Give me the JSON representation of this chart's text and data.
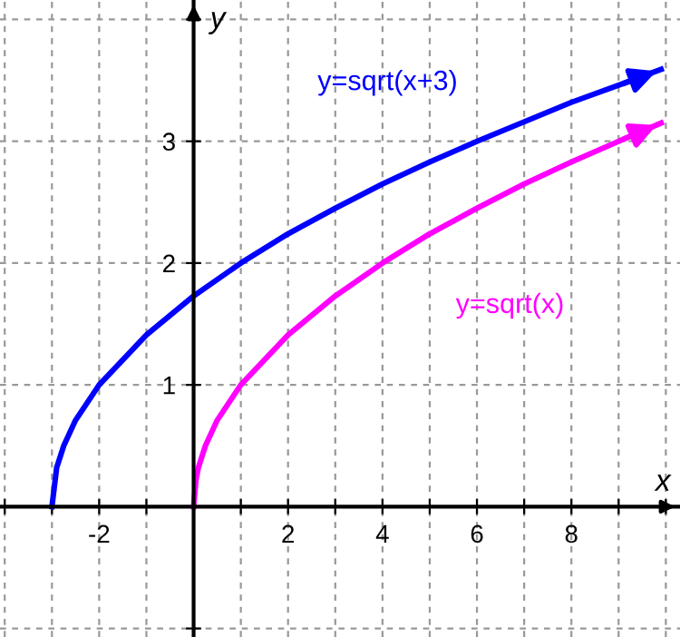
{
  "chart_data": {
    "type": "line",
    "xlabel": "x",
    "ylabel": "y",
    "series": [
      {
        "name": "y=sqrt(x+3)",
        "color": "#0000ff",
        "x": [
          -3,
          -2.9,
          -2.75,
          -2.5,
          -2,
          -1,
          0,
          1,
          2,
          3,
          4,
          5,
          6,
          7,
          8,
          9,
          9.9
        ],
        "values": [
          0,
          0.32,
          0.5,
          0.71,
          1,
          1.41,
          1.73,
          2,
          2.24,
          2.45,
          2.65,
          2.83,
          3,
          3.16,
          3.32,
          3.46,
          3.59
        ]
      },
      {
        "name": "y=sqrt(x)",
        "color": "#ff00ff",
        "x": [
          0,
          0.05,
          0.1,
          0.25,
          0.5,
          1,
          2,
          3,
          4,
          5,
          6,
          7,
          8,
          9,
          9.9
        ],
        "values": [
          0,
          0.22,
          0.32,
          0.5,
          0.71,
          1,
          1.41,
          1.73,
          2,
          2.24,
          2.45,
          2.65,
          2.83,
          3,
          3.15
        ]
      }
    ],
    "xlim": [
      -4.1,
      10.3
    ],
    "ylim": [
      -1.07,
      4.16
    ],
    "xticks": [
      {
        "value": -4,
        "label": null
      },
      {
        "value": -3,
        "label": null
      },
      -2,
      {
        "value": -1,
        "label": null
      },
      {
        "value": 1,
        "label": null
      },
      2,
      {
        "value": 3,
        "label": null
      },
      4,
      {
        "value": 5,
        "label": null
      },
      6,
      {
        "value": 7,
        "label": null
      },
      8,
      {
        "value": 9,
        "label": null
      },
      {
        "value": 10,
        "label": null
      }
    ],
    "yticks": [
      {
        "value": -1,
        "label": null
      },
      1,
      2,
      3,
      {
        "value": 4,
        "label": null
      }
    ],
    "grid": true,
    "marker": "none",
    "line_style": "solid"
  }
}
